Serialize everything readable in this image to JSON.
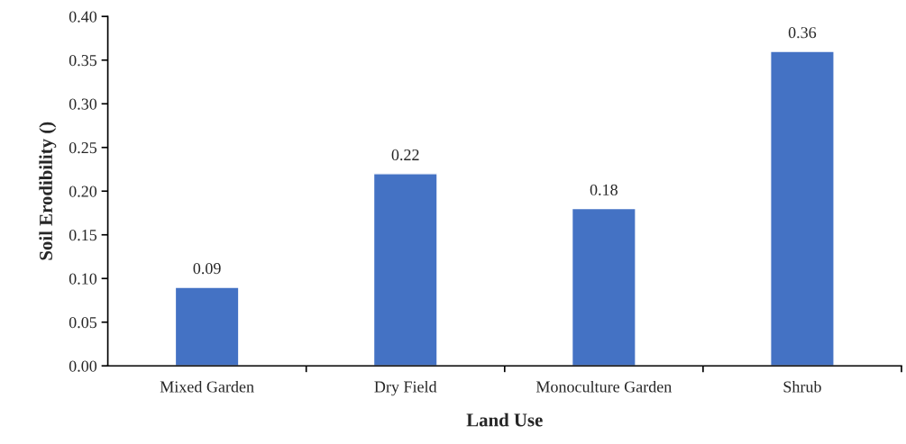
{
  "chart_data": {
    "type": "bar",
    "xlabel": "Land Use",
    "ylabel": "Soil Erodibility ()",
    "categories": [
      "Mixed Garden",
      "Dry Field",
      "Monoculture Garden",
      "Shrub"
    ],
    "values": [
      0.09,
      0.22,
      0.18,
      0.36
    ],
    "color": "#4472c4",
    "ylim": [
      0,
      0.4
    ],
    "yticks": [
      {
        "value": 0,
        "label": "0.00"
      },
      {
        "value": 0.05,
        "label": "0.05"
      },
      {
        "value": 0.1,
        "label": "0.10"
      },
      {
        "value": 0.15,
        "label": "0.15"
      },
      {
        "value": 0.2,
        "label": "0.20"
      },
      {
        "value": 0.25,
        "label": "0.25"
      },
      {
        "value": 0.3,
        "label": "0.30"
      },
      {
        "value": 0.35,
        "label": "0.35"
      },
      {
        "value": 0.4,
        "label": "0.40"
      }
    ],
    "data_labels": true,
    "grid": false,
    "legend": false
  }
}
